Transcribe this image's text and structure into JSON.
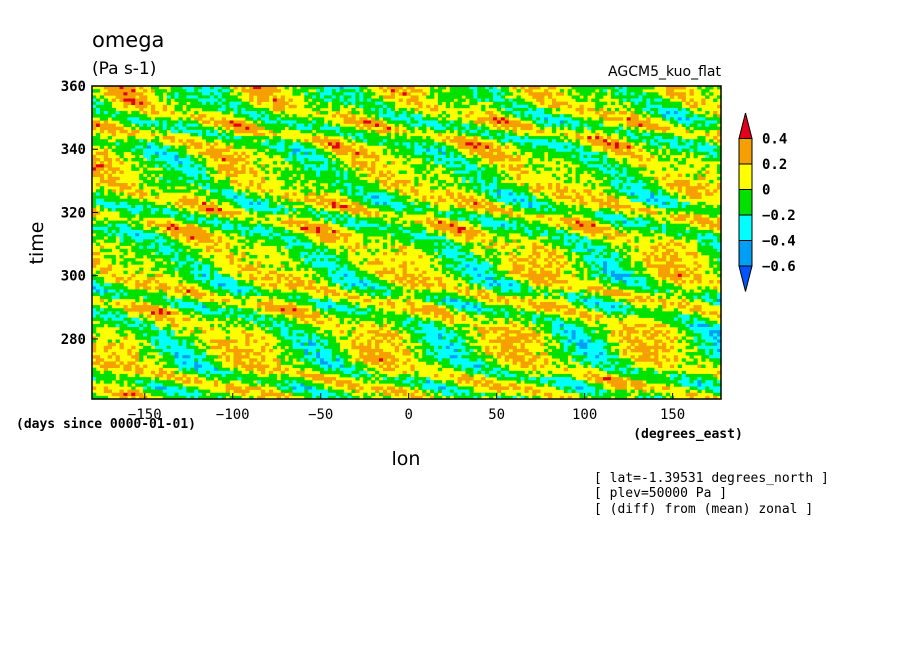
{
  "chart_data": {
    "type": "heatmap",
    "title": "omega",
    "units": "(Pa s-1)",
    "model": "AGCM5_kuo_flat",
    "xlabel": "lon",
    "xunits": "(degrees_east)",
    "ylabel": "time",
    "yunits": "(days since 0000-01-01)",
    "xlim": [
      -180,
      177.5
    ],
    "ylim": [
      261,
      360
    ],
    "x_ticks": [
      -150,
      -100,
      -50,
      0,
      50,
      100,
      150
    ],
    "y_ticks": [
      280,
      300,
      320,
      340,
      360
    ],
    "colorbar": {
      "labels": [
        "0.4",
        "0.2",
        "0",
        "−0.2",
        "−0.4",
        "−0.6"
      ],
      "levels": [
        {
          "range": [
            0.4,
            1.0
          ],
          "color": "#e3001b"
        },
        {
          "range": [
            0.2,
            0.4
          ],
          "color": "#f5a000"
        },
        {
          "range": [
            0.0,
            0.2
          ],
          "color": "#ffff00"
        },
        {
          "range": [
            -0.2,
            0.0
          ],
          "color": "#00e100"
        },
        {
          "range": [
            -0.4,
            -0.2
          ],
          "color": "#00ffff"
        },
        {
          "range": [
            -0.6,
            -0.4
          ],
          "color": "#009ef5"
        },
        {
          "range": [
            -1.0,
            -0.6
          ],
          "color": "#0055ff"
        }
      ]
    },
    "annotations": [
      "[ lat=-1.39531 degrees_north ]",
      "[ plev=50000 Pa ]",
      "[ (diff) from (mean) zonal ]"
    ]
  }
}
